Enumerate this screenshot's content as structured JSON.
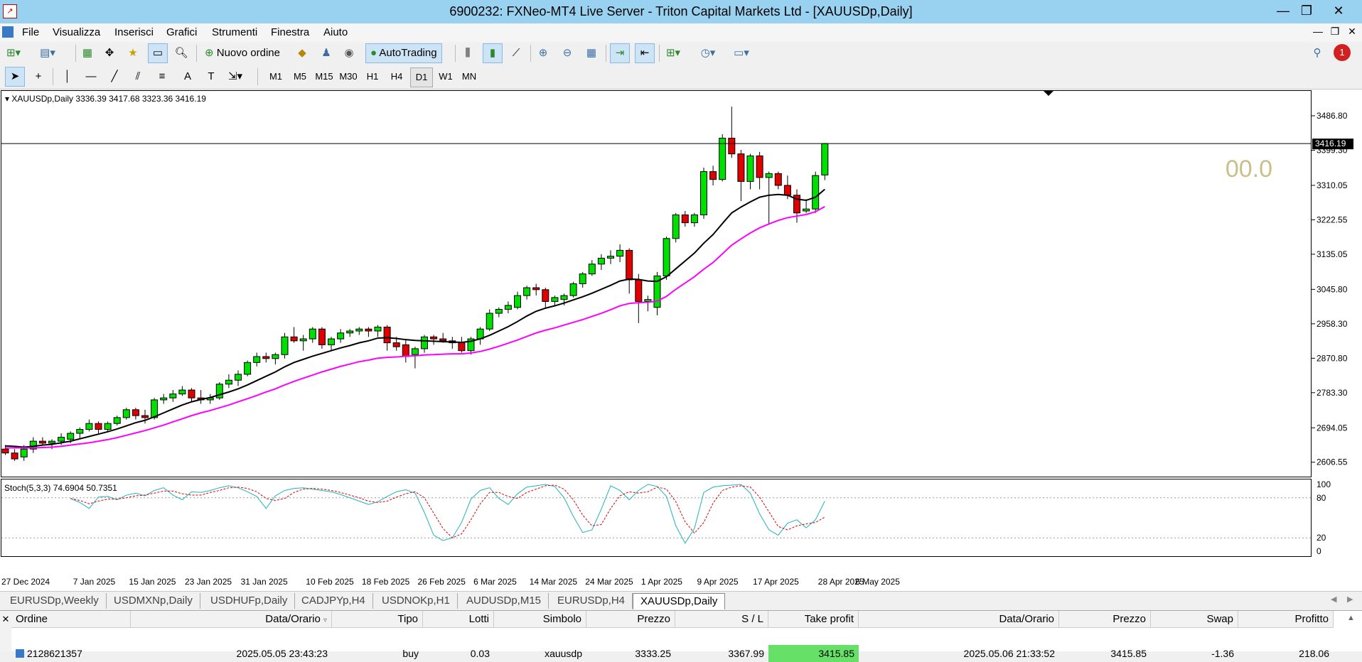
{
  "window": {
    "title": "6900232: FXNeo-MT4 Live Server - Triton Capital Markets Ltd - [XAUUSDp,Daily]"
  },
  "menu": [
    "File",
    "Visualizza",
    "Inserisci",
    "Grafici",
    "Strumenti",
    "Finestra",
    "Aiuto"
  ],
  "toolbar": {
    "new_order": "Nuovo ordine",
    "autotrading": "AutoTrading",
    "alert_count": "1"
  },
  "timeframes": [
    "M1",
    "M5",
    "M15",
    "M30",
    "H1",
    "H4",
    "D1",
    "W1",
    "MN"
  ],
  "active_timeframe": "D1",
  "chart": {
    "header": "XAUUSDp,Daily",
    "ohlc": "3336.39 3417.68 3323.36 3416.19",
    "price_labels": [
      "3486.80",
      "3399.30",
      "3310.05",
      "3222.55",
      "3135.05",
      "3045.80",
      "2958.30",
      "2870.80",
      "2783.30",
      "2694.05",
      "2606.55"
    ],
    "current_price": "3416.19",
    "countdown": "00.0",
    "date_labels": [
      "27 Dec 2024",
      "7 Jan 2025",
      "15 Jan 2025",
      "23 Jan 2025",
      "31 Jan 2025",
      "10 Feb 2025",
      "18 Feb 2025",
      "26 Feb 2025",
      "6 Mar 2025",
      "14 Mar 2025",
      "24 Mar 2025",
      "1 Apr 2025",
      "9 Apr 2025",
      "17 Apr 2025",
      "28 Apr 2025",
      "6 May 2025"
    ],
    "stoch_label": "Stoch(5,3,3) 74.6904 50.7351",
    "stoch_levels": [
      "100",
      "80",
      "20",
      "0"
    ],
    "colors": {
      "bull": "#00e000",
      "bear": "#e00000",
      "ma_fast": "#000000",
      "ma_slow": "#ff00ff",
      "stoch_main": "#20b2c0",
      "stoch_signal": "#e00000"
    }
  },
  "chart_data": {
    "type": "candlestick",
    "ylim": [
      2570,
      3550
    ],
    "candles": [
      [
        2640,
        2650,
        2625,
        2630
      ],
      [
        2630,
        2640,
        2610,
        2615
      ],
      [
        2620,
        2650,
        2610,
        2640
      ],
      [
        2640,
        2670,
        2630,
        2660
      ],
      [
        2660,
        2670,
        2650,
        2655
      ],
      [
        2655,
        2665,
        2640,
        2660
      ],
      [
        2660,
        2680,
        2650,
        2670
      ],
      [
        2665,
        2685,
        2655,
        2680
      ],
      [
        2680,
        2695,
        2665,
        2690
      ],
      [
        2690,
        2715,
        2685,
        2705
      ],
      [
        2705,
        2710,
        2680,
        2690
      ],
      [
        2690,
        2710,
        2685,
        2705
      ],
      [
        2705,
        2725,
        2700,
        2720
      ],
      [
        2720,
        2745,
        2715,
        2740
      ],
      [
        2740,
        2745,
        2715,
        2725
      ],
      [
        2725,
        2740,
        2705,
        2720
      ],
      [
        2720,
        2770,
        2715,
        2765
      ],
      [
        2765,
        2780,
        2755,
        2770
      ],
      [
        2770,
        2790,
        2760,
        2780
      ],
      [
        2780,
        2800,
        2775,
        2790
      ],
      [
        2790,
        2795,
        2760,
        2770
      ],
      [
        2770,
        2790,
        2755,
        2765
      ],
      [
        2765,
        2780,
        2755,
        2770
      ],
      [
        2770,
        2810,
        2765,
        2805
      ],
      [
        2805,
        2830,
        2795,
        2815
      ],
      [
        2815,
        2840,
        2800,
        2830
      ],
      [
        2830,
        2865,
        2825,
        2860
      ],
      [
        2860,
        2885,
        2850,
        2875
      ],
      [
        2875,
        2885,
        2860,
        2870
      ],
      [
        2870,
        2885,
        2855,
        2880
      ],
      [
        2880,
        2935,
        2870,
        2925
      ],
      [
        2925,
        2950,
        2910,
        2915
      ],
      [
        2915,
        2930,
        2890,
        2920
      ],
      [
        2920,
        2950,
        2910,
        2945
      ],
      [
        2945,
        2950,
        2895,
        2905
      ],
      [
        2905,
        2925,
        2890,
        2920
      ],
      [
        2920,
        2945,
        2910,
        2935
      ],
      [
        2935,
        2945,
        2925,
        2940
      ],
      [
        2940,
        2950,
        2930,
        2945
      ],
      [
        2945,
        2950,
        2925,
        2940
      ],
      [
        2940,
        2955,
        2925,
        2950
      ],
      [
        2950,
        2955,
        2890,
        2910
      ],
      [
        2910,
        2925,
        2890,
        2900
      ],
      [
        2905,
        2920,
        2860,
        2875
      ],
      [
        2880,
        2900,
        2845,
        2895
      ],
      [
        2895,
        2930,
        2885,
        2925
      ],
      [
        2925,
        2930,
        2905,
        2920
      ],
      [
        2920,
        2935,
        2910,
        2915
      ],
      [
        2915,
        2925,
        2895,
        2910
      ],
      [
        2910,
        2925,
        2885,
        2890
      ],
      [
        2890,
        2925,
        2880,
        2920
      ],
      [
        2920,
        2950,
        2905,
        2945
      ],
      [
        2945,
        2995,
        2940,
        2985
      ],
      [
        2985,
        3000,
        2975,
        2995
      ],
      [
        2995,
        3015,
        2985,
        3005
      ],
      [
        3000,
        3040,
        2995,
        3030
      ],
      [
        3030,
        3055,
        3020,
        3050
      ],
      [
        3050,
        3060,
        3030,
        3045
      ],
      [
        3045,
        3050,
        3000,
        3015
      ],
      [
        3015,
        3030,
        3005,
        3025
      ],
      [
        3020,
        3035,
        3005,
        3030
      ],
      [
        3030,
        3065,
        3025,
        3060
      ],
      [
        3060,
        3090,
        3050,
        3085
      ],
      [
        3085,
        3120,
        3080,
        3110
      ],
      [
        3110,
        3135,
        3095,
        3125
      ],
      [
        3125,
        3145,
        3110,
        3130
      ],
      [
        3130,
        3160,
        3115,
        3145
      ],
      [
        3145,
        3150,
        3035,
        3070
      ],
      [
        3070,
        3085,
        2960,
        3015
      ],
      [
        3015,
        3030,
        2990,
        3020
      ],
      [
        3000,
        3090,
        2980,
        3080
      ],
      [
        3080,
        3180,
        3070,
        3175
      ],
      [
        3175,
        3240,
        3165,
        3235
      ],
      [
        3235,
        3245,
        3205,
        3215
      ],
      [
        3215,
        3240,
        3205,
        3235
      ],
      [
        3235,
        3355,
        3225,
        3345
      ],
      [
        3345,
        3360,
        3310,
        3325
      ],
      [
        3325,
        3440,
        3320,
        3430
      ],
      [
        3430,
        3510,
        3380,
        3390
      ],
      [
        3390,
        3400,
        3270,
        3320
      ],
      [
        3320,
        3390,
        3300,
        3385
      ],
      [
        3385,
        3395,
        3300,
        3330
      ],
      [
        3330,
        3345,
        3210,
        3340
      ],
      [
        3340,
        3345,
        3300,
        3310
      ],
      [
        3310,
        3335,
        3275,
        3285
      ],
      [
        3285,
        3300,
        3215,
        3240
      ],
      [
        3245,
        3275,
        3240,
        3250
      ],
      [
        3250,
        3345,
        3240,
        3335
      ],
      [
        3336.39,
        3417.68,
        3323.36,
        3416.19
      ]
    ],
    "ma_fast": [
      2648,
      2647,
      2645,
      2647,
      2650,
      2652,
      2656,
      2660,
      2666,
      2672,
      2678,
      2684,
      2691,
      2699,
      2707,
      2713,
      2722,
      2732,
      2742,
      2752,
      2760,
      2766,
      2771,
      2778,
      2785,
      2793,
      2803,
      2814,
      2825,
      2836,
      2849,
      2860,
      2868,
      2876,
      2883,
      2890,
      2897,
      2903,
      2910,
      2915,
      2922,
      2923,
      2921,
      2918,
      2916,
      2915,
      2914,
      2913,
      2912,
      2911,
      2914,
      2920,
      2929,
      2940,
      2951,
      2964,
      2978,
      2990,
      2998,
      3004,
      3011,
      3019,
      3027,
      3036,
      3046,
      3056,
      3067,
      3072,
      3071,
      3067,
      3066,
      3078,
      3098,
      3118,
      3138,
      3163,
      3185,
      3213,
      3240,
      3255,
      3268,
      3280,
      3285,
      3287,
      3285,
      3275,
      3272,
      3280,
      3300
    ],
    "ma_slow": [
      2643,
      2643,
      2643,
      2643,
      2644,
      2645,
      2647,
      2650,
      2653,
      2656,
      2660,
      2664,
      2669,
      2675,
      2681,
      2687,
      2694,
      2701,
      2709,
      2717,
      2725,
      2732,
      2738,
      2745,
      2752,
      2760,
      2768,
      2776,
      2785,
      2793,
      2803,
      2812,
      2820,
      2828,
      2836,
      2843,
      2850,
      2856,
      2862,
      2866,
      2871,
      2873,
      2874,
      2876,
      2877,
      2879,
      2880,
      2881,
      2882,
      2882,
      2884,
      2888,
      2894,
      2901,
      2909,
      2917,
      2926,
      2935,
      2942,
      2948,
      2955,
      2962,
      2969,
      2977,
      2985,
      2994,
      3004,
      3010,
      3012,
      3013,
      3016,
      3028,
      3046,
      3062,
      3078,
      3097,
      3114,
      3136,
      3158,
      3174,
      3189,
      3202,
      3212,
      3221,
      3228,
      3232,
      3236,
      3243,
      3256
    ],
    "stoch_main": [
      79,
      73,
      64,
      81,
      82,
      77,
      84,
      87,
      83,
      91,
      95,
      84,
      77,
      89,
      88,
      91,
      95,
      98,
      95,
      89,
      82,
      64,
      83,
      91,
      94,
      95,
      93,
      91,
      89,
      85,
      80,
      75,
      70,
      74,
      82,
      89,
      92,
      87,
      58,
      24,
      16,
      20,
      43,
      78,
      91,
      95,
      79,
      70,
      86,
      96,
      98,
      100,
      97,
      80,
      52,
      28,
      32,
      63,
      98,
      91,
      77,
      91,
      100,
      97,
      82,
      38,
      12,
      34,
      88,
      96,
      98,
      99,
      100,
      87,
      56,
      32,
      24,
      42,
      47,
      35,
      47,
      75
    ],
    "stoch_signal": [
      79,
      76,
      71,
      75,
      78,
      78,
      80,
      83,
      84,
      87,
      90,
      90,
      86,
      84,
      84,
      88,
      91,
      95,
      96,
      94,
      89,
      79,
      76,
      79,
      88,
      93,
      94,
      93,
      91,
      88,
      84,
      80,
      75,
      73,
      75,
      81,
      86,
      89,
      80,
      57,
      34,
      20,
      26,
      47,
      71,
      88,
      88,
      82,
      79,
      88,
      93,
      98,
      99,
      93,
      77,
      54,
      38,
      40,
      64,
      83,
      89,
      87,
      89,
      96,
      93,
      74,
      44,
      27,
      43,
      72,
      91,
      96,
      98,
      96,
      81,
      59,
      37,
      32,
      38,
      41,
      43,
      51
    ]
  },
  "tabs": [
    "EURUSDp,Weekly",
    "USDMXNp,Daily",
    "USDHUFp,Daily",
    "CADJPYp,H4",
    "USDNOKp,H1",
    "AUDUSDp,M15",
    "EURUSDp,H4",
    "XAUUSDp,Daily"
  ],
  "active_tab": "XAUUSDp,Daily",
  "terminal": {
    "headers": [
      "Ordine",
      "Data/Orario",
      "Tipo",
      "Lotti",
      "Simbolo",
      "Prezzo",
      "S / L",
      "Take profit",
      "Data/Orario",
      "Prezzo",
      "Swap",
      "Profitto"
    ],
    "row": [
      "2128621357",
      "2025.05.05 23:43:23",
      "buy",
      "0.03",
      "xauusdp",
      "3333.25",
      "3367.99",
      "3415.85",
      "2025.05.06 21:33:52",
      "3415.85",
      "-1.36",
      "218.06"
    ]
  }
}
